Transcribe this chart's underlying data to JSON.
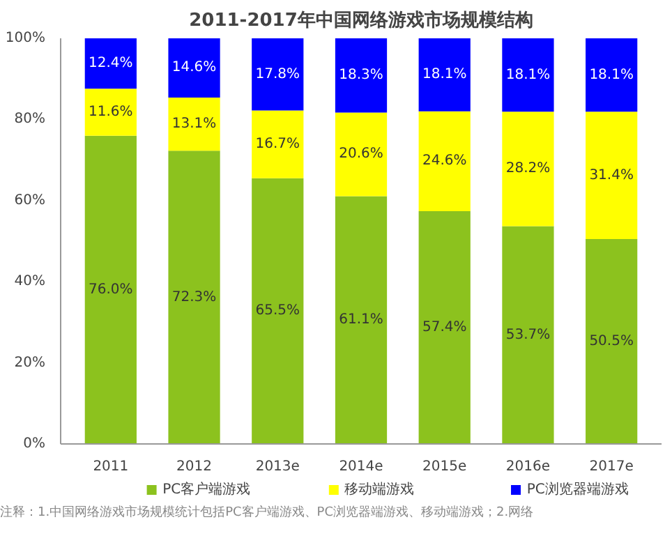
{
  "chart_data": {
    "type": "bar",
    "title": "2011-2017年中国网络游戏市场规模结构",
    "stacked": true,
    "categories": [
      "2011",
      "2012",
      "2013e",
      "2014e",
      "2015e",
      "2016e",
      "2017e"
    ],
    "series": [
      {
        "name": "PC客户端游戏",
        "color": "#8cc21e",
        "values": [
          76.0,
          72.3,
          65.5,
          61.1,
          57.4,
          53.7,
          50.5
        ],
        "value_labels": [
          "76.0%",
          "72.3%",
          "65.5%",
          "61.1%",
          "57.4%",
          "53.7%",
          "50.5%"
        ]
      },
      {
        "name": "移动端游戏",
        "color": "#ffff00",
        "values": [
          11.6,
          13.1,
          16.7,
          20.6,
          24.6,
          28.2,
          31.4
        ],
        "value_labels": [
          "11.6%",
          "13.1%",
          "16.7%",
          "20.6%",
          "24.6%",
          "28.2%",
          "31.4%"
        ]
      },
      {
        "name": "PC浏览器端游戏",
        "color": "#0000ff",
        "values": [
          12.4,
          14.6,
          17.8,
          18.3,
          18.1,
          18.1,
          18.1
        ],
        "value_labels": [
          "12.4%",
          "14.6%",
          "17.8%",
          "18.3%",
          "18.1%",
          "18.1%",
          "18.1%"
        ]
      }
    ],
    "ylim": [
      0,
      100
    ],
    "yticks": [
      {
        "value": 0,
        "label": "0%"
      },
      {
        "value": 20,
        "label": "20%"
      },
      {
        "value": 40,
        "label": "40%"
      },
      {
        "value": 60,
        "label": "60%"
      },
      {
        "value": 80,
        "label": "80%"
      },
      {
        "value": 100,
        "label": "100%"
      }
    ],
    "grid": false,
    "legend": "bottom",
    "annotations": [
      "注释：1.中国网络游戏市场规模统计包括PC客户端游戏、PC浏览器端游戏、移动端游戏；2.网络"
    ]
  }
}
